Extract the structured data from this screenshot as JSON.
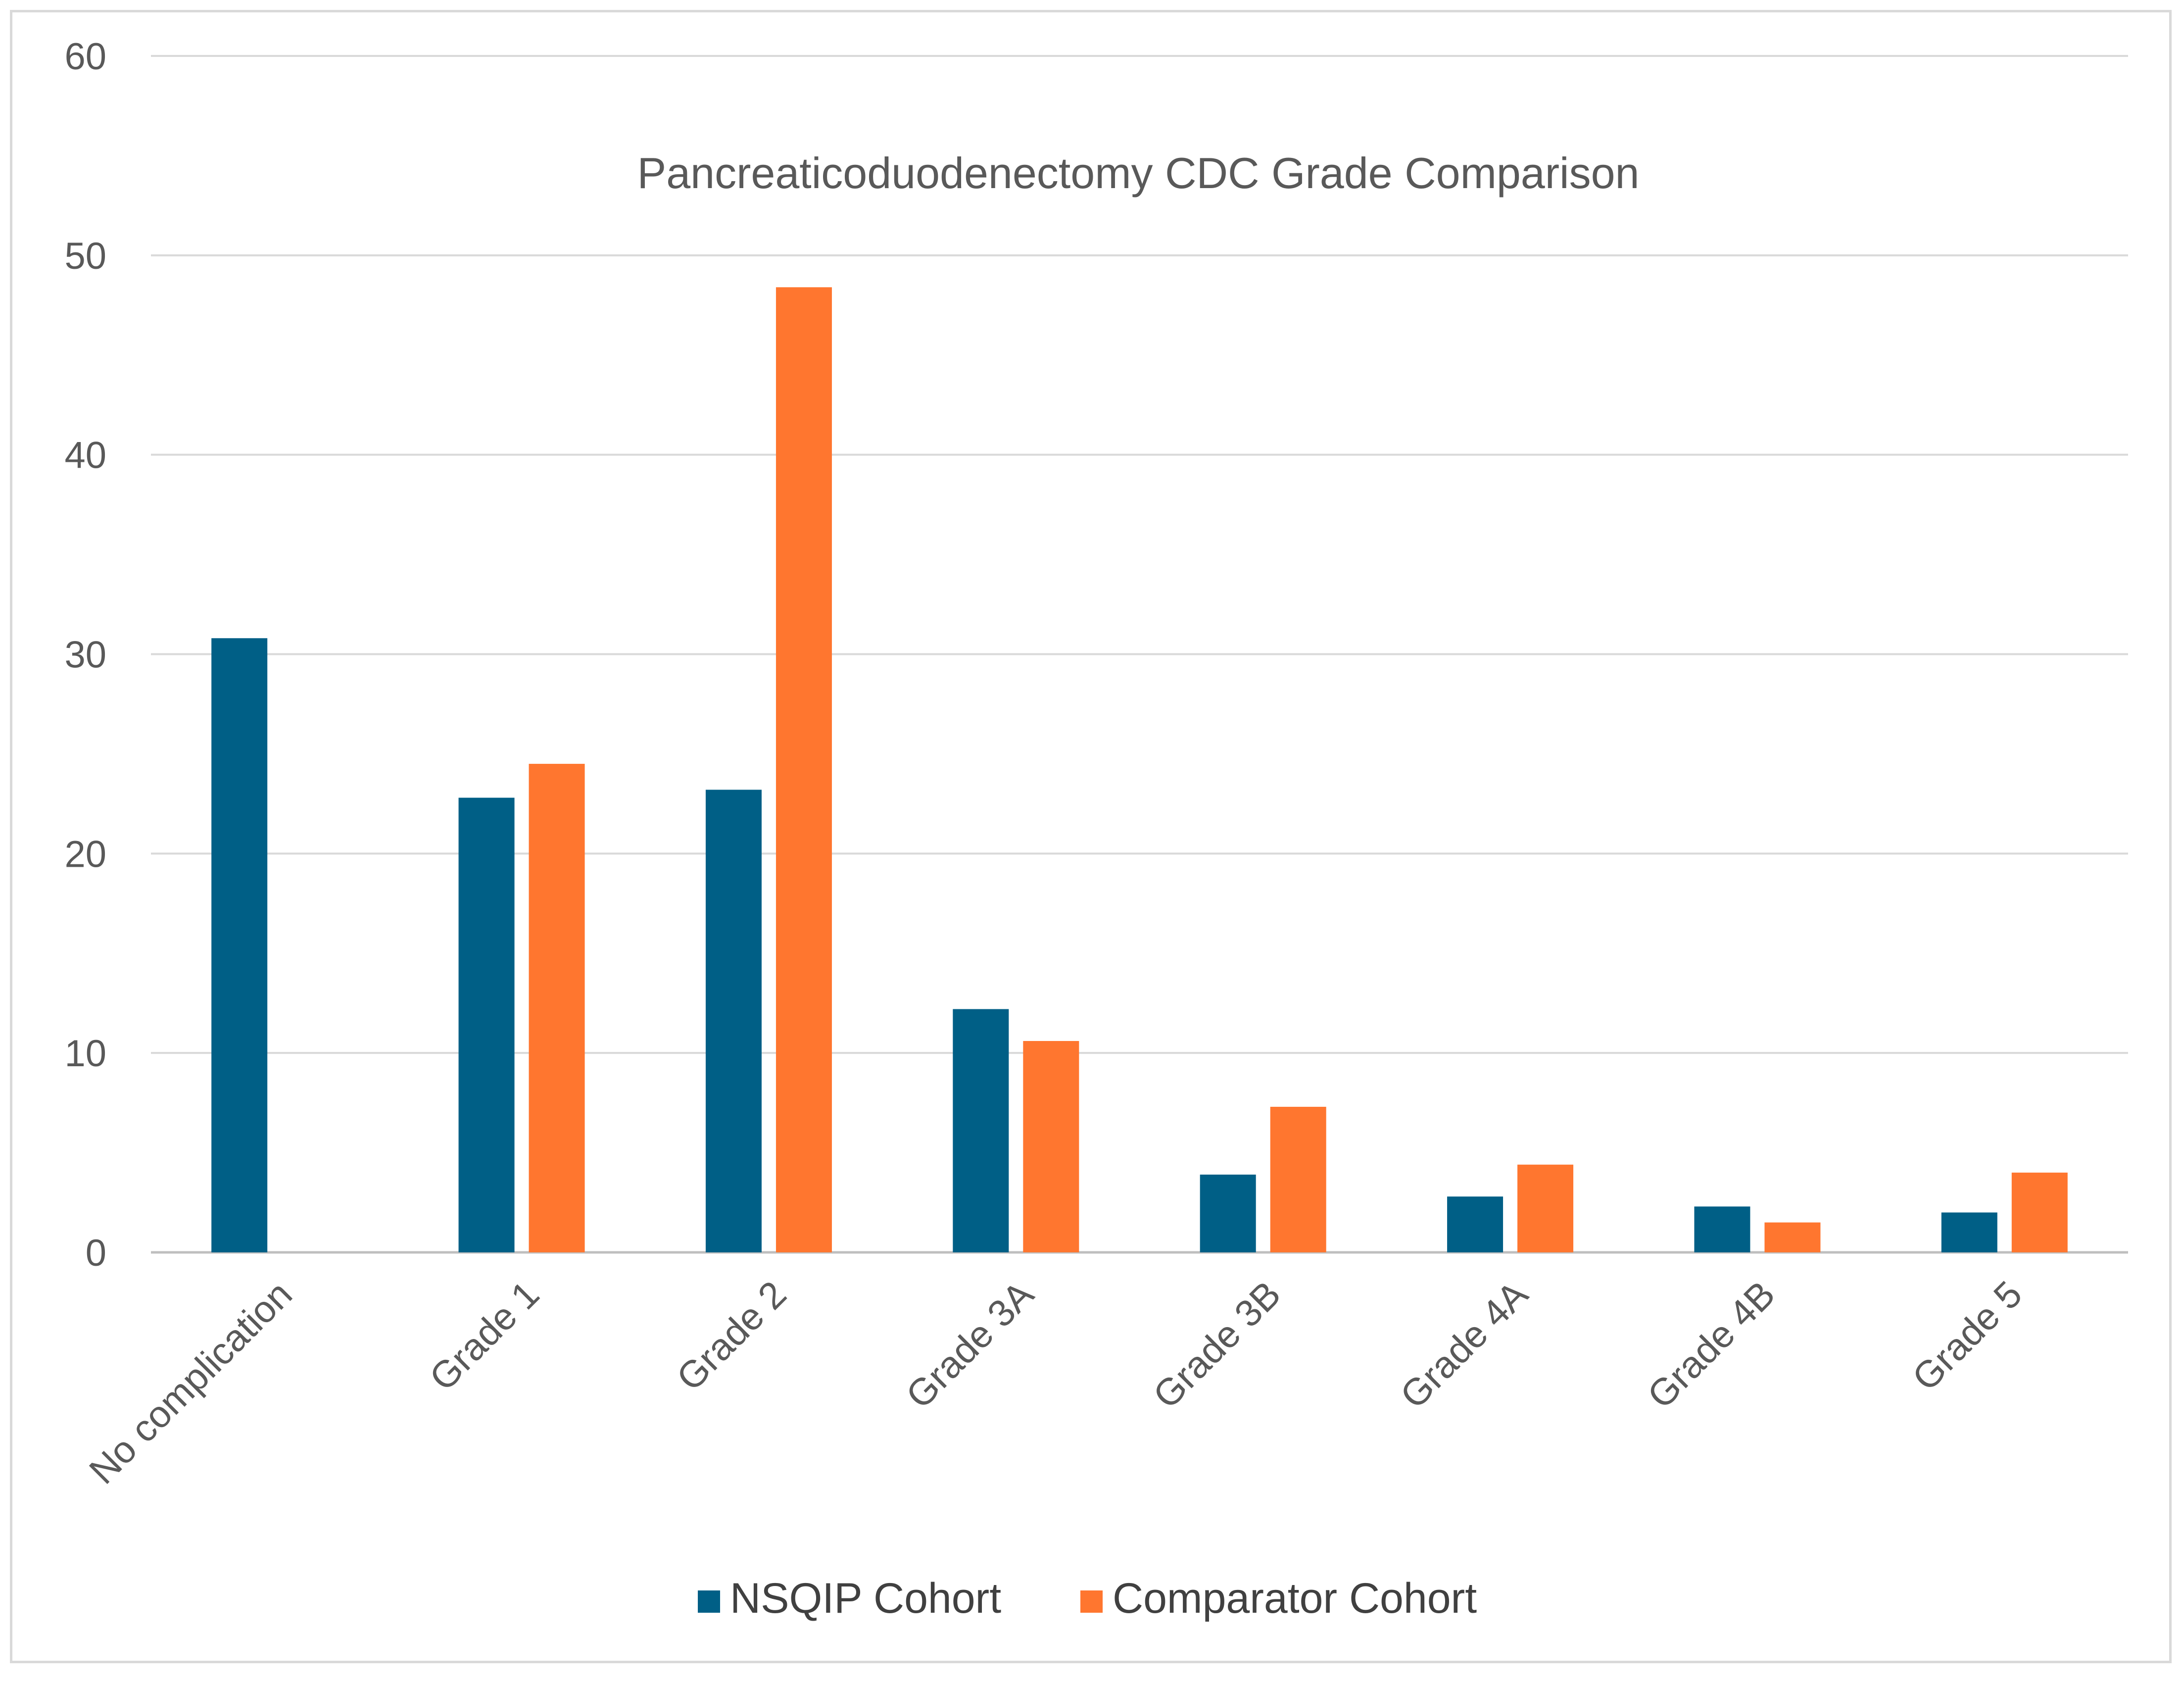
{
  "chart_data": {
    "type": "bar",
    "title": "Pancreaticoduodenectomy CDC Grade Comparison",
    "xlabel": "",
    "ylabel": "",
    "ylim": [
      0,
      60
    ],
    "yticks": [
      0,
      10,
      20,
      30,
      40,
      50,
      60
    ],
    "grid": true,
    "legend_position": "bottom",
    "categories": [
      "No complication",
      "Grade 1",
      "Grade 2",
      "Grade 3A",
      "Grade 3B",
      "Grade 4A",
      "Grade 4B",
      "Grade 5"
    ],
    "series": [
      {
        "name": "NSQIP Cohort",
        "color": "#005f86",
        "values": [
          30.8,
          22.8,
          23.2,
          12.2,
          3.9,
          2.8,
          2.3,
          2.0
        ]
      },
      {
        "name": "Comparator Cohort",
        "color": "#ff762f",
        "values": [
          null,
          24.5,
          48.4,
          10.6,
          7.3,
          4.4,
          1.5,
          4.0
        ]
      }
    ]
  }
}
